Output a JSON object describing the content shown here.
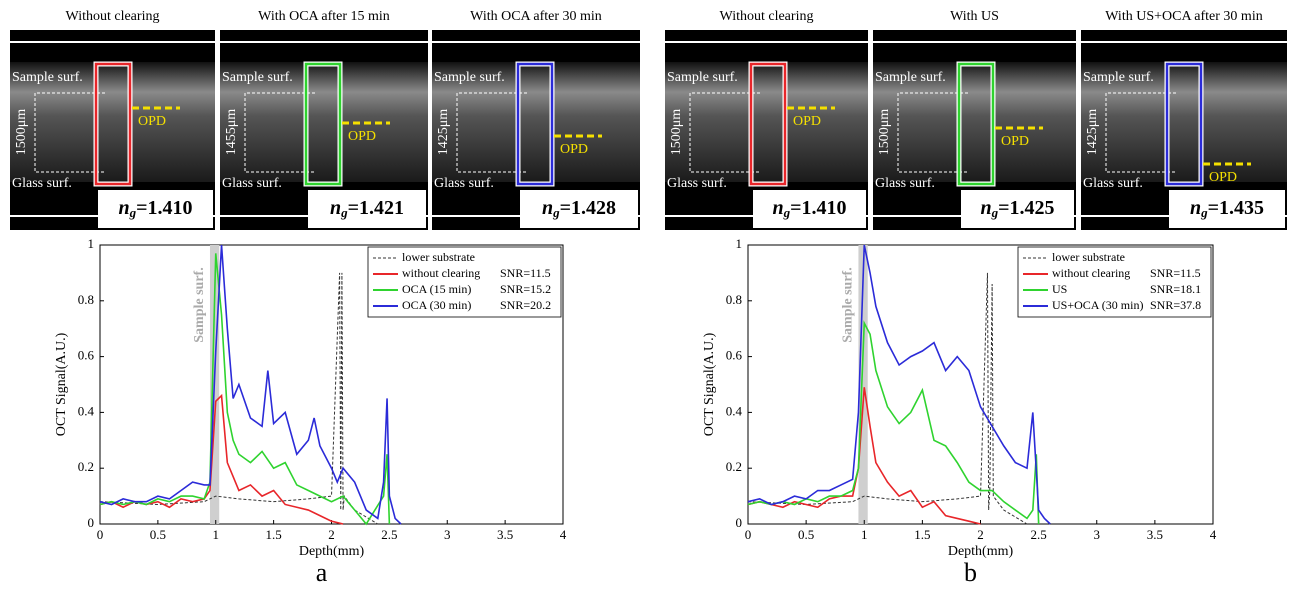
{
  "panels": [
    {
      "title": "Without clearing",
      "top_label": "Sample surf.",
      "bottom_label": "Glass surf.",
      "thickness": "1500μm",
      "opd": "OPD",
      "box_color": "#e8262a",
      "ng": {
        "base": "n",
        "sub": "g",
        "value": "=1.410"
      }
    },
    {
      "title": "With OCA after 15 min",
      "top_label": "Sample surf.",
      "bottom_label": "Glass surf.",
      "thickness": "1455μm",
      "opd": "OPD",
      "box_color": "#2fd32f",
      "ng": {
        "base": "n",
        "sub": "g",
        "value": "=1.421"
      }
    },
    {
      "title": "With OCA after 30 min",
      "top_label": "Sample surf.",
      "bottom_label": "Glass surf.",
      "thickness": "1425μm",
      "opd": "OPD",
      "box_color": "#2b2bd8",
      "ng": {
        "base": "n",
        "sub": "g",
        "value": "=1.428"
      }
    },
    {
      "title": "Without clearing",
      "top_label": "Sample surf.",
      "bottom_label": "Glass surf.",
      "thickness": "1500μm",
      "opd": "OPD",
      "box_color": "#e8262a",
      "ng": {
        "base": "n",
        "sub": "g",
        "value": "=1.410"
      }
    },
    {
      "title": "With US",
      "top_label": "Sample surf.",
      "bottom_label": "Glass surf.",
      "thickness": "1500μm",
      "opd": "OPD",
      "box_color": "#2fd32f",
      "ng": {
        "base": "n",
        "sub": "g",
        "value": "=1.425"
      }
    },
    {
      "title": "With US+OCA after 30 min",
      "top_label": "Sample surf.",
      "bottom_label": "Glass surf.",
      "thickness": "1425μm",
      "opd": "OPD",
      "box_color": "#2b2bd8",
      "ng": {
        "base": "n",
        "sub": "g",
        "value": "=1.435"
      }
    }
  ],
  "chart_data": [
    {
      "type": "line",
      "figure_label": "a",
      "x_label": "Depth(mm)",
      "y_label": "OCT Signal(A.U.)",
      "xlim": [
        0,
        4
      ],
      "ylim": [
        0,
        1
      ],
      "xticks": [
        0,
        0.5,
        1,
        1.5,
        2,
        2.5,
        3,
        3.5,
        4
      ],
      "yticks": [
        0,
        0.2,
        0.4,
        0.6,
        0.8,
        1
      ],
      "legend": "upper right",
      "shaded_region": {
        "x": [
          0.95,
          1.03
        ],
        "label": "Sample surf."
      },
      "series": [
        {
          "name": "lower substrate",
          "color": "#333333",
          "dashed": true,
          "x": [
            0,
            0.5,
            0.9,
            1.0,
            1.2,
            1.5,
            1.8,
            2.0,
            2.07,
            2.08,
            2.09,
            2.1,
            2.11,
            2.2,
            2.4
          ],
          "values": [
            0.08,
            0.07,
            0.08,
            0.1,
            0.09,
            0.08,
            0.09,
            0.1,
            0.9,
            0.05,
            0.9,
            0.05,
            0.1,
            0.05,
            0
          ]
        },
        {
          "name": "without clearing",
          "snr": "SNR=11.5",
          "color": "#e8262a",
          "x": [
            0,
            0.1,
            0.2,
            0.3,
            0.4,
            0.5,
            0.6,
            0.7,
            0.8,
            0.9,
            0.95,
            1.0,
            1.05,
            1.1,
            1.15,
            1.2,
            1.3,
            1.4,
            1.5,
            1.6,
            1.7,
            1.8,
            1.9,
            2.0,
            2.1
          ],
          "values": [
            0.07,
            0.08,
            0.06,
            0.08,
            0.07,
            0.08,
            0.06,
            0.09,
            0.08,
            0.09,
            0.12,
            0.44,
            0.46,
            0.22,
            0.17,
            0.12,
            0.14,
            0.1,
            0.12,
            0.07,
            0.06,
            0.05,
            0.03,
            0.01,
            0
          ]
        },
        {
          "name": "OCA (15 min)",
          "snr": "SNR=15.2",
          "color": "#2fd32f",
          "x": [
            0,
            0.1,
            0.2,
            0.3,
            0.4,
            0.5,
            0.6,
            0.7,
            0.8,
            0.9,
            0.95,
            1.0,
            1.05,
            1.1,
            1.15,
            1.2,
            1.3,
            1.4,
            1.5,
            1.6,
            1.7,
            1.8,
            1.9,
            2.0,
            2.1,
            2.2,
            2.3,
            2.45,
            2.48,
            2.5
          ],
          "values": [
            0.07,
            0.08,
            0.07,
            0.08,
            0.07,
            0.09,
            0.08,
            0.1,
            0.1,
            0.09,
            0.15,
            0.97,
            0.75,
            0.4,
            0.3,
            0.25,
            0.22,
            0.26,
            0.2,
            0.22,
            0.14,
            0.12,
            0.1,
            0.08,
            0.1,
            0.05,
            0,
            0.1,
            0.25,
            0
          ]
        },
        {
          "name": "OCA (30 min)",
          "snr": "SNR=20.2",
          "color": "#2b2bd8",
          "x": [
            0,
            0.1,
            0.2,
            0.3,
            0.4,
            0.5,
            0.6,
            0.7,
            0.8,
            0.9,
            0.95,
            1.0,
            1.05,
            1.1,
            1.15,
            1.2,
            1.3,
            1.4,
            1.45,
            1.5,
            1.6,
            1.7,
            1.8,
            1.85,
            1.9,
            2.0,
            2.05,
            2.1,
            2.2,
            2.3,
            2.4,
            2.45,
            2.48,
            2.5,
            2.55,
            2.6
          ],
          "values": [
            0.08,
            0.07,
            0.09,
            0.08,
            0.08,
            0.1,
            0.09,
            0.12,
            0.15,
            0.14,
            0.14,
            0.62,
            1.0,
            0.7,
            0.45,
            0.5,
            0.38,
            0.35,
            0.55,
            0.36,
            0.4,
            0.25,
            0.3,
            0.38,
            0.28,
            0.2,
            0.15,
            0.2,
            0.15,
            0.05,
            0.02,
            0.15,
            0.45,
            0.1,
            0.02,
            0
          ]
        }
      ]
    },
    {
      "type": "line",
      "figure_label": "b",
      "x_label": "Depth(mm)",
      "y_label": "OCT Signal(A.U.)",
      "xlim": [
        0,
        4
      ],
      "ylim": [
        0,
        1
      ],
      "xticks": [
        0,
        0.5,
        1,
        1.5,
        2,
        2.5,
        3,
        3.5,
        4
      ],
      "yticks": [
        0,
        0.2,
        0.4,
        0.6,
        0.8,
        1
      ],
      "legend": "upper right",
      "shaded_region": {
        "x": [
          0.95,
          1.03
        ],
        "label": "Sample surf."
      },
      "series": [
        {
          "name": "lower substrate",
          "color": "#333333",
          "dashed": true,
          "x": [
            0,
            0.5,
            0.9,
            1.0,
            1.2,
            1.5,
            1.8,
            2.0,
            2.06,
            2.07,
            2.08,
            2.1,
            2.11,
            2.2,
            2.4
          ],
          "values": [
            0.08,
            0.07,
            0.08,
            0.1,
            0.09,
            0.08,
            0.09,
            0.1,
            0.9,
            0.05,
            0.12,
            0.86,
            0.1,
            0.05,
            0
          ]
        },
        {
          "name": "without clearing",
          "snr": "SNR=11.5",
          "color": "#e8262a",
          "x": [
            0,
            0.1,
            0.2,
            0.3,
            0.4,
            0.5,
            0.6,
            0.7,
            0.8,
            0.9,
            0.95,
            1.0,
            1.05,
            1.1,
            1.2,
            1.3,
            1.4,
            1.5,
            1.6,
            1.7,
            1.8,
            1.9,
            2.0
          ],
          "values": [
            0.07,
            0.08,
            0.07,
            0.06,
            0.08,
            0.07,
            0.06,
            0.09,
            0.1,
            0.1,
            0.2,
            0.49,
            0.35,
            0.22,
            0.15,
            0.1,
            0.12,
            0.06,
            0.08,
            0.03,
            0.02,
            0.01,
            0
          ]
        },
        {
          "name": "US",
          "snr": "SNR=18.1",
          "color": "#2fd32f",
          "x": [
            0,
            0.1,
            0.2,
            0.3,
            0.4,
            0.5,
            0.6,
            0.7,
            0.8,
            0.9,
            0.95,
            1.0,
            1.05,
            1.1,
            1.2,
            1.3,
            1.4,
            1.5,
            1.6,
            1.7,
            1.8,
            1.9,
            2.0,
            2.1,
            2.2,
            2.3,
            2.4,
            2.45,
            2.48,
            2.5
          ],
          "values": [
            0.07,
            0.08,
            0.07,
            0.08,
            0.07,
            0.09,
            0.08,
            0.1,
            0.1,
            0.12,
            0.2,
            0.72,
            0.68,
            0.55,
            0.42,
            0.36,
            0.4,
            0.48,
            0.3,
            0.28,
            0.22,
            0.15,
            0.12,
            0.12,
            0.08,
            0.05,
            0.02,
            0.05,
            0.25,
            0
          ]
        },
        {
          "name": "US+OCA (30 min)",
          "snr": "SNR=37.8",
          "color": "#2b2bd8",
          "x": [
            0,
            0.1,
            0.2,
            0.3,
            0.4,
            0.5,
            0.6,
            0.7,
            0.8,
            0.9,
            0.95,
            1.0,
            1.05,
            1.1,
            1.2,
            1.3,
            1.4,
            1.5,
            1.6,
            1.7,
            1.8,
            1.9,
            2.0,
            2.1,
            2.2,
            2.3,
            2.4,
            2.45,
            2.5,
            2.55,
            2.6
          ],
          "values": [
            0.08,
            0.09,
            0.07,
            0.08,
            0.1,
            0.09,
            0.12,
            0.12,
            0.14,
            0.16,
            0.4,
            1.0,
            0.9,
            0.78,
            0.65,
            0.57,
            0.6,
            0.62,
            0.65,
            0.55,
            0.6,
            0.55,
            0.42,
            0.35,
            0.28,
            0.22,
            0.2,
            0.4,
            0.05,
            0.02,
            0
          ]
        }
      ]
    }
  ]
}
